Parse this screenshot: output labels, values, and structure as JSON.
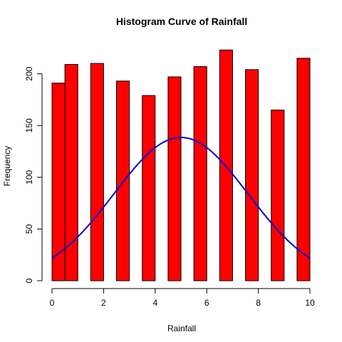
{
  "chart_data": {
    "type": "bar",
    "title": "Histogram Curve of Rainfall",
    "xlabel": "Rainfall",
    "ylabel": "Frequency",
    "xlim": [
      0,
      10
    ],
    "ylim": [
      0,
      230
    ],
    "x_ticks": [
      0,
      2,
      4,
      6,
      8,
      10
    ],
    "y_ticks": [
      0,
      50,
      100,
      150,
      200
    ],
    "grid": false,
    "bars": [
      {
        "x0": 0.0,
        "x1": 0.5,
        "value": 191
      },
      {
        "x0": 0.5,
        "x1": 1.0,
        "value": 209
      },
      {
        "x0": 1.5,
        "x1": 2.0,
        "value": 210
      },
      {
        "x0": 2.5,
        "x1": 3.0,
        "value": 193
      },
      {
        "x0": 3.5,
        "x1": 4.0,
        "value": 179
      },
      {
        "x0": 4.5,
        "x1": 5.0,
        "value": 197
      },
      {
        "x0": 5.5,
        "x1": 6.0,
        "value": 207
      },
      {
        "x0": 6.5,
        "x1": 7.0,
        "value": 223
      },
      {
        "x0": 7.5,
        "x1": 8.0,
        "value": 204
      },
      {
        "x0": 8.5,
        "x1": 9.0,
        "value": 165
      },
      {
        "x0": 9.5,
        "x1": 10.0,
        "value": 215
      }
    ],
    "curve": {
      "type": "normal-density-overlay",
      "mean": 5.0,
      "sd": 2.6,
      "peak": 138.5,
      "x": [
        0.0,
        0.5,
        1.0,
        1.5,
        2.0,
        2.5,
        3.0,
        3.5,
        4.0,
        4.5,
        5.0,
        5.5,
        6.0,
        6.5,
        7.0,
        7.5,
        8.0,
        8.5,
        9.0,
        9.5,
        10.0
      ],
      "y": [
        39.0,
        50.5,
        63.7,
        78.0,
        92.7,
        107.0,
        119.7,
        129.9,
        136.5,
        138.4,
        138.5,
        138.4,
        136.5,
        129.9,
        119.7,
        107.0,
        92.7,
        78.0,
        63.7,
        50.5,
        39.0
      ]
    },
    "colors": {
      "bar_fill": "#ff0000",
      "bar_border": "#000000",
      "curve": "#0000cc"
    }
  }
}
